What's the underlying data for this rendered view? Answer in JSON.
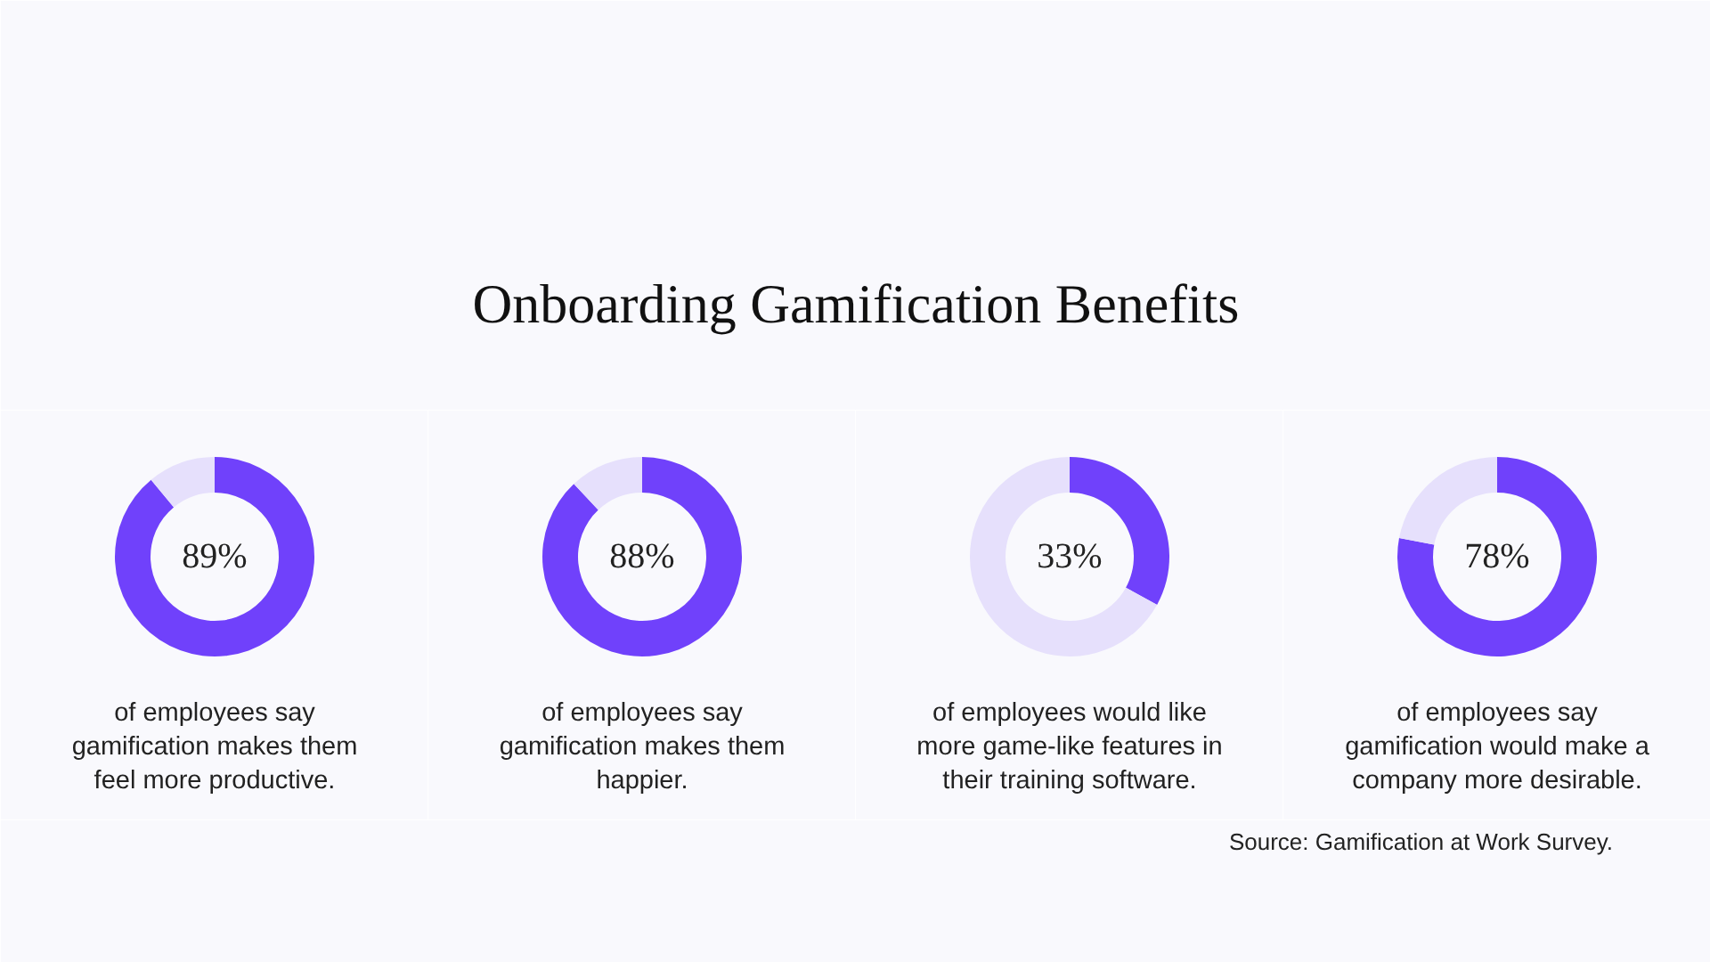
{
  "chart_data": [
    {
      "type": "other",
      "title": "Onboarding Gamification Benefits",
      "annotations": [
        "Source: Gamification at Work Survey."
      ]
    },
    {
      "type": "donut",
      "categories": [
        null,
        null
      ],
      "values": [
        89,
        11
      ],
      "colors": [
        "#7041fb",
        "#e6e0fc"
      ],
      "value_labels": [
        "89%",
        null
      ],
      "annotations": [
        "of employees say gamification makes them feel more productive."
      ]
    },
    {
      "type": "donut",
      "categories": [
        null,
        null
      ],
      "values": [
        88,
        12
      ],
      "colors": [
        "#7041fb",
        "#e6e0fc"
      ],
      "value_labels": [
        "88%",
        null
      ],
      "annotations": [
        "of employees say gamification makes them happier."
      ]
    },
    {
      "type": "donut",
      "categories": [
        null,
        null
      ],
      "values": [
        33,
        67
      ],
      "colors": [
        "#7041fb",
        "#e6e0fc"
      ],
      "value_labels": [
        "33%",
        null
      ],
      "annotations": [
        "of employees would like more game-like features in their training software."
      ]
    },
    {
      "type": "donut",
      "categories": [
        null,
        null
      ],
      "values": [
        78,
        22
      ],
      "colors": [
        "#7041fb",
        "#e6e0fc"
      ],
      "value_labels": [
        "78%",
        null
      ],
      "annotations": [
        "of employees say gamification would make a company more desirable."
      ]
    }
  ]
}
